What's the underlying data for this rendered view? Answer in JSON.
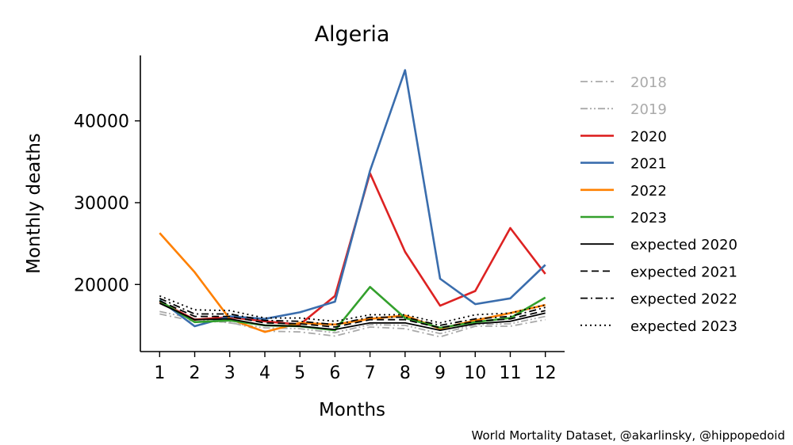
{
  "chart_data": {
    "type": "line",
    "title": "Algeria",
    "xlabel": "Months",
    "ylabel": "Monthly deaths",
    "x": [
      1,
      2,
      3,
      4,
      5,
      6,
      7,
      8,
      9,
      10,
      11,
      12
    ],
    "xticks": [
      "1",
      "2",
      "3",
      "4",
      "5",
      "6",
      "7",
      "8",
      "9",
      "10",
      "11",
      "12"
    ],
    "yticks": [
      20000,
      30000,
      40000
    ],
    "ytick_labels": [
      "20000",
      "30000",
      "40000"
    ],
    "xlim": [
      0.45,
      12.55
    ],
    "ylim": [
      11800,
      48000
    ],
    "grid": false,
    "legend_placement": "right",
    "series": [
      {
        "name": "2018",
        "color": "#aaaaaa",
        "dash": "dashdot",
        "values": [
          16400,
          15500,
          15400,
          14300,
          14200,
          13700,
          14800,
          14600,
          13600,
          14900,
          14900,
          15700
        ]
      },
      {
        "name": "2019",
        "color": "#aaaaaa",
        "dash": "dashdotdot",
        "values": [
          16700,
          15800,
          15300,
          14700,
          14600,
          14100,
          15100,
          15000,
          14000,
          15100,
          15200,
          16100
        ]
      },
      {
        "name": "2020",
        "color": "#dd2222",
        "dash": "solid",
        "values": [
          17900,
          15700,
          16000,
          15500,
          15100,
          18600,
          33600,
          24000,
          17400,
          19200,
          26900,
          21300
        ]
      },
      {
        "name": "2021",
        "color": "#3a6dad",
        "dash": "solid",
        "values": [
          18100,
          14900,
          16100,
          15800,
          16600,
          17900,
          33900,
          46200,
          20700,
          17600,
          18300,
          22400
        ]
      },
      {
        "name": "2022",
        "color": "#ff8000",
        "dash": "solid",
        "values": [
          26300,
          21500,
          15800,
          14200,
          15300,
          15100,
          15800,
          16200,
          14600,
          15600,
          16500,
          17500
        ]
      },
      {
        "name": "2023",
        "color": "#33a02c",
        "dash": "solid",
        "values": [
          18000,
          15400,
          15600,
          15000,
          14900,
          14400,
          19700,
          15900,
          14700,
          15400,
          15900,
          18400
        ]
      },
      {
        "name": "expected 2020",
        "color": "#000000",
        "dash": "solid",
        "values": [
          17700,
          15700,
          15800,
          15000,
          14900,
          14500,
          15300,
          15300,
          14400,
          15200,
          15500,
          16500
        ]
      },
      {
        "name": "expected 2021",
        "color": "#000000",
        "dash": "dashed",
        "values": [
          18000,
          16100,
          16100,
          15300,
          15200,
          14800,
          15700,
          15700,
          14700,
          15500,
          15800,
          16800
        ]
      },
      {
        "name": "expected 2022",
        "color": "#000000",
        "dash": "dashdot",
        "values": [
          18300,
          16400,
          16400,
          15600,
          15500,
          15100,
          16000,
          16000,
          15000,
          15800,
          16100,
          17200
        ]
      },
      {
        "name": "expected 2023",
        "color": "#000000",
        "dash": "dotted",
        "values": [
          18600,
          16900,
          16800,
          15900,
          15900,
          15500,
          16300,
          16300,
          15300,
          16300,
          16500,
          17500
        ]
      }
    ],
    "legend_text_colors": [
      "#aaaaaa",
      "#aaaaaa",
      "#000000",
      "#000000",
      "#000000",
      "#000000",
      "#000000",
      "#000000",
      "#000000",
      "#000000"
    ]
  },
  "credit": "World Mortality Dataset, @akarlinsky, @hippopedoid"
}
